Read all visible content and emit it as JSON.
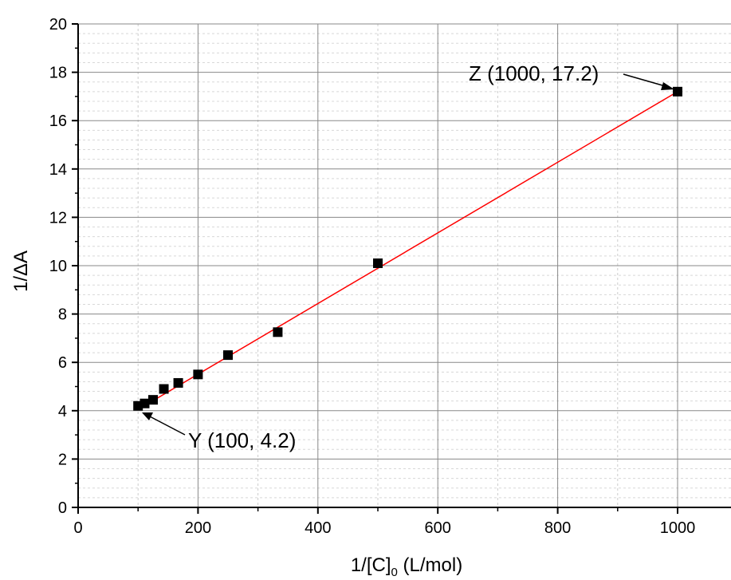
{
  "chart_data": {
    "type": "scatter",
    "title": "",
    "xlabel": "1/[C]",
    "xlabel_subscript": "0",
    "xlabel_unit": " (L/mol)",
    "ylabel": "1/ΔA",
    "xlim": [
      0,
      1000
    ],
    "ylim": [
      0,
      20
    ],
    "x_ticks": [
      0,
      200,
      400,
      600,
      800,
      1000
    ],
    "y_ticks": [
      0,
      2,
      4,
      6,
      8,
      10,
      12,
      14,
      16,
      18,
      20
    ],
    "grid": true,
    "series": [
      {
        "marker": "square",
        "color": "#000000",
        "x": [
          100,
          111,
          125,
          143,
          167,
          200,
          250,
          333,
          500,
          1000
        ],
        "y": [
          4.2,
          4.3,
          4.45,
          4.9,
          5.15,
          5.5,
          6.3,
          7.25,
          10.1,
          17.2
        ]
      }
    ],
    "fit_line": {
      "color": "#ff0000",
      "x": [
        100,
        1000
      ],
      "y": [
        4.05,
        17.2
      ]
    },
    "annotations": [
      {
        "text": "Z (1000, 17.2)",
        "x": 1000,
        "y": 17.2
      },
      {
        "text": "Y (100, 4.2)",
        "x": 100,
        "y": 4.2
      }
    ]
  }
}
